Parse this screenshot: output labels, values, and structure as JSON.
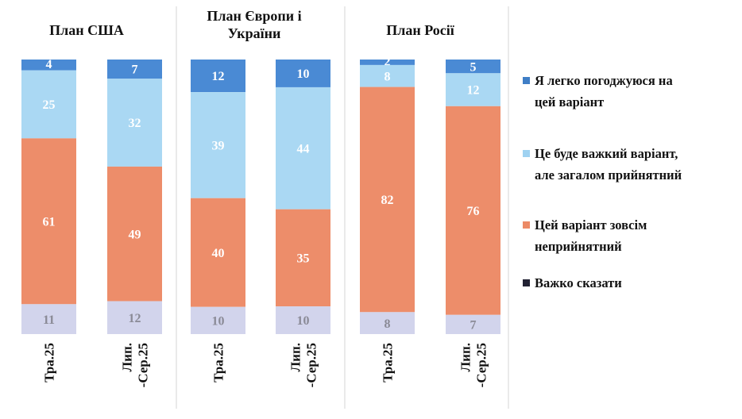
{
  "chart_data": {
    "type": "bar",
    "stacked": true,
    "normalized_to": 100,
    "colors": {
      "easy": "#4a8ad4",
      "hard": "#aad8f3",
      "unacceptable": "#ed8d6a",
      "dk": "#d2d4ec"
    },
    "label_colors": {
      "easy": "#ffffff",
      "hard": "#ffffff",
      "unacceptable": "#ffffff",
      "dk": "#8a8a96"
    },
    "legend": [
      {
        "key": "easy",
        "lines": [
          "Я легко погоджуюся на",
          "цей варіант"
        ],
        "color": "#3f7ec6"
      },
      {
        "key": "hard",
        "lines": [
          "Це буде важкий варіант,",
          "але загалом прийнятний"
        ],
        "color": "#9fd2f1"
      },
      {
        "key": "unacceptable",
        "lines": [
          "Цей варіант зовсім",
          "неприйнятний"
        ],
        "color": "#ec8a66"
      },
      {
        "key": "dk",
        "lines": [
          "Важко сказати"
        ],
        "color": "#222233"
      }
    ],
    "panels": [
      {
        "title": [
          "План США"
        ],
        "bars": [
          {
            "label": [
              "Тра.25"
            ],
            "easy": 4,
            "hard": 25,
            "unacceptable": 61,
            "dk": 11
          },
          {
            "label": [
              "Лип.",
              "-Сер.25"
            ],
            "easy": 7,
            "hard": 32,
            "unacceptable": 49,
            "dk": 12
          }
        ]
      },
      {
        "title": [
          "План Європи і",
          "України"
        ],
        "bars": [
          {
            "label": [
              "Тра.25"
            ],
            "easy": 12,
            "hard": 39,
            "unacceptable": 40,
            "dk": 10
          },
          {
            "label": [
              "Лип.",
              "-Сер.25"
            ],
            "easy": 10,
            "hard": 44,
            "unacceptable": 35,
            "dk": 10
          }
        ]
      },
      {
        "title": [
          "План Росії"
        ],
        "bars": [
          {
            "label": [
              "Тра.25"
            ],
            "easy": 2,
            "hard": 8,
            "unacceptable": 82,
            "dk": 8
          },
          {
            "label": [
              "Лип.",
              "-Сер.25"
            ],
            "easy": 5,
            "hard": 12,
            "unacceptable": 76,
            "dk": 7
          }
        ]
      }
    ]
  }
}
